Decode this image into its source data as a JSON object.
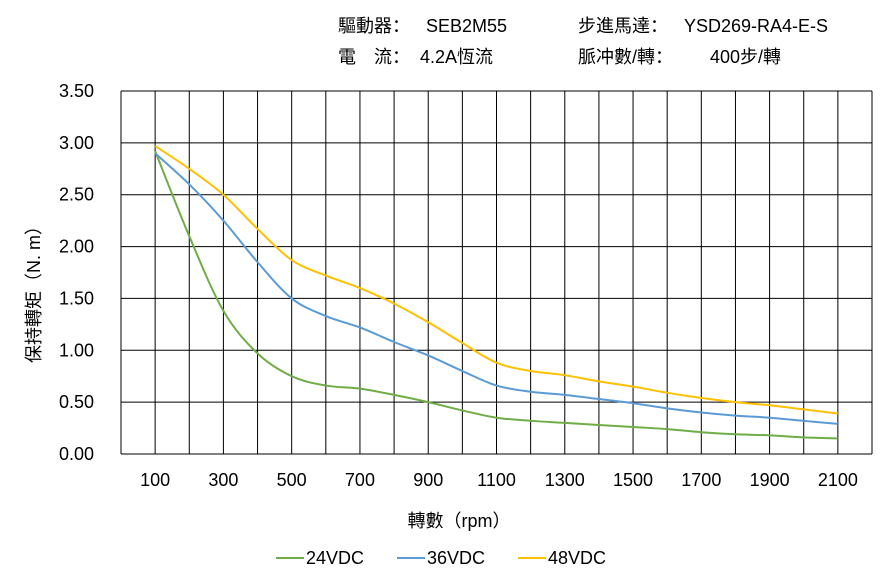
{
  "header": {
    "driver_label": "驅動器：",
    "driver_value": "SEB2M55",
    "current_label": "電　流：",
    "current_value": "4.2A恆流",
    "motor_label": "步進馬達：",
    "motor_value": "YSD269-RA4-E-S",
    "pulse_label": "脈冲數/轉：",
    "pulse_value": "400步/轉"
  },
  "chart_data": {
    "type": "line",
    "title": "",
    "xlabel": "轉數（rpm）",
    "ylabel": "保持轉矩（N. m）",
    "xlim": [
      0,
      2200
    ],
    "ylim": [
      0,
      3.5
    ],
    "grid": true,
    "legend_position": "bottom",
    "x_ticks": [
      "100",
      "300",
      "500",
      "700",
      "900",
      "1100",
      "1300",
      "1500",
      "1700",
      "1900",
      "2100"
    ],
    "y_ticks": [
      "0.00",
      "0.50",
      "1.00",
      "1.50",
      "2.00",
      "2.50",
      "3.00",
      "3.50"
    ],
    "x": [
      100,
      200,
      300,
      400,
      500,
      600,
      700,
      800,
      900,
      1000,
      1100,
      1200,
      1300,
      1400,
      1500,
      1600,
      1700,
      1800,
      1900,
      2000,
      2100
    ],
    "series": [
      {
        "name": "24VDC",
        "color": "#70ad47",
        "values": [
          2.92,
          2.1,
          1.38,
          0.97,
          0.75,
          0.66,
          0.63,
          0.57,
          0.5,
          0.42,
          0.35,
          0.32,
          0.3,
          0.28,
          0.26,
          0.24,
          0.21,
          0.19,
          0.18,
          0.16,
          0.15
        ]
      },
      {
        "name": "36VDC",
        "color": "#5b9bd5",
        "values": [
          2.9,
          2.6,
          2.25,
          1.85,
          1.5,
          1.33,
          1.22,
          1.08,
          0.95,
          0.8,
          0.66,
          0.6,
          0.57,
          0.53,
          0.49,
          0.44,
          0.4,
          0.37,
          0.35,
          0.32,
          0.29
        ]
      },
      {
        "name": "48VDC",
        "color": "#ffc000",
        "values": [
          2.97,
          2.75,
          2.5,
          2.17,
          1.87,
          1.72,
          1.6,
          1.45,
          1.27,
          1.07,
          0.88,
          0.8,
          0.76,
          0.7,
          0.65,
          0.59,
          0.54,
          0.5,
          0.47,
          0.43,
          0.39
        ]
      }
    ]
  }
}
